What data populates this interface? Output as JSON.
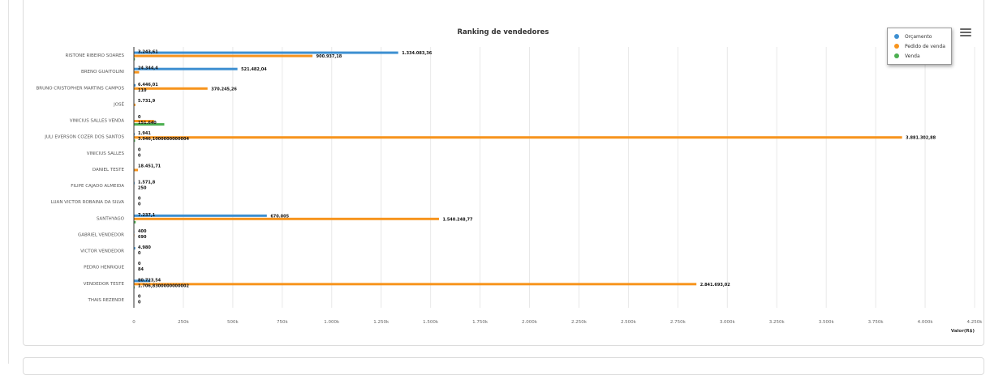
{
  "chart_data": {
    "type": "bar",
    "orientation": "horizontal",
    "title": "Ranking de vendedores",
    "xlabel": "Valor(R$)",
    "ylabel": "",
    "xlim": [
      0,
      4250000
    ],
    "x_tick_labels": [
      "0",
      "250k",
      "500k",
      "750k",
      "1.000k",
      "1.250k",
      "1.500k",
      "1.750k",
      "2.000k",
      "2.250k",
      "2.500k",
      "2.750k",
      "3.000k",
      "3.250k",
      "3.500k",
      "3.750k",
      "4.000k",
      "4.250k"
    ],
    "grid": true,
    "legend_position": "top-right",
    "categories": [
      "RISTONE RIBEIRO SOARES",
      "BRENO GUAITOLINI",
      "BRUNO CRISTOPHER MARTINS CAMPOS",
      "JOSÉ",
      "VINICIUS SALLES VENDA",
      "JULI EVERSON COZER DOS SANTOS",
      "VINICIUS SALLES",
      "DANIEL TESTE",
      "FILIPE CAJADO ALMEIDA",
      "LUAN VICTOR ROBAINA DA SILVA",
      "SANTHYAGO",
      "GABRIEL VENDEDOR",
      "VICTOR VENDEDOR",
      "PEDRO HENRIQUE",
      "VENDEDOR TESTE",
      "THAIS REZENDE"
    ],
    "series": [
      {
        "name": "Orçamento",
        "color": "#3d8fd1",
        "values": [
          1334083.36,
          521482.04,
          6446.01,
          null,
          0,
          1941,
          0,
          null,
          1571.8,
          0,
          670005,
          400,
          4980,
          0,
          80723.54,
          0
        ],
        "labels": [
          "1.334.083,36",
          "521.482,04",
          "6.446,01",
          null,
          "0",
          "1.941",
          "0",
          null,
          "1.571,8",
          "0",
          "670.005",
          "400",
          "4.980",
          "0",
          "80.723,54",
          "0"
        ]
      },
      {
        "name": "Pedido de venda",
        "color": "#f7941d",
        "values": [
          900937.18,
          24344.4,
          370245.26,
          5731.9,
          100000,
          3881302.88,
          0,
          18451.71,
          250,
          0,
          1540248.77,
          690,
          0,
          84,
          2841693.02,
          0
        ],
        "labels": [
          "900.937,18",
          "24.344,4",
          "370.245,26",
          "5.731,9",
          null,
          "3.881.302,88",
          "0",
          "18.451,71",
          "250",
          "0",
          "1.540.248,77",
          "690",
          "0",
          "84",
          "2.841.693,02",
          "0"
        ]
      },
      {
        "name": "Venda",
        "color": "#4caf50",
        "values": [
          3243.61,
          null,
          110,
          null,
          151640,
          3946.1,
          null,
          null,
          null,
          null,
          7237.1,
          null,
          null,
          null,
          1706.83,
          null
        ],
        "labels": [
          "3.243,61",
          null,
          "110",
          null,
          "151.640",
          "3.946,1000000000004",
          null,
          null,
          null,
          null,
          "7.237,1",
          null,
          null,
          null,
          "1.706,8300000000002",
          null
        ]
      }
    ]
  }
}
